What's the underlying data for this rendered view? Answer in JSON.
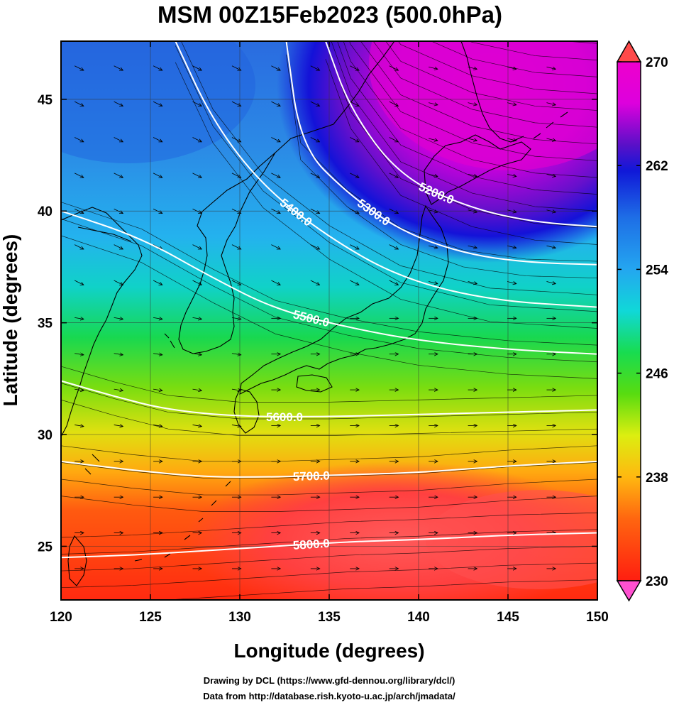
{
  "title": "MSM 00Z15Feb2023 (500.0hPa)",
  "xlabel": "Longitude (degrees)",
  "ylabel": "Latitude  (degrees)",
  "credits": {
    "line1": "Drawing by DCL (https://www.gfd-dennou.org/library/dcl/)",
    "line2": "Data from http://database.rish.kyoto-u.ac.jp/arch/jmadata/"
  },
  "chart_data": {
    "type": "heatmap",
    "xlim": [
      120,
      150
    ],
    "ylim": [
      22.6,
      47.6
    ],
    "xticks": [
      "120",
      "125",
      "130",
      "135",
      "140",
      "145",
      "150"
    ],
    "yticks": [
      "25",
      "30",
      "35",
      "40",
      "45"
    ],
    "grid": true,
    "colorbar": {
      "min": 230,
      "max": 270,
      "ticks": [
        "230",
        "238",
        "246",
        "254",
        "262",
        "270"
      ],
      "placement": "right"
    },
    "contours": [
      {
        "label": "5200.0",
        "points": [
          [
            134.8,
            47.6
          ],
          [
            136.2,
            44.5
          ],
          [
            139,
            41.5
          ],
          [
            143,
            40.1
          ],
          [
            146.5,
            39.5
          ],
          [
            150,
            39.3
          ]
        ]
      },
      {
        "label": "5300.0",
        "points": [
          [
            132.6,
            47.6
          ],
          [
            133.4,
            42.9
          ],
          [
            136,
            40.8
          ],
          [
            139,
            39.1
          ],
          [
            142.5,
            38.1
          ],
          [
            146,
            37.7
          ],
          [
            150,
            37.6
          ]
        ]
      },
      {
        "label": "5400.0",
        "points": [
          [
            126.4,
            47.6
          ],
          [
            128.5,
            44
          ],
          [
            131.3,
            41.1
          ],
          [
            135,
            38.8
          ],
          [
            139,
            37
          ],
          [
            144,
            36
          ],
          [
            150,
            35.7
          ]
        ]
      },
      {
        "label": "5500.0",
        "points": [
          [
            120,
            40
          ],
          [
            124.5,
            38.8
          ],
          [
            128.5,
            37
          ],
          [
            132,
            35.6
          ],
          [
            136,
            34.8
          ],
          [
            140,
            34.2
          ],
          [
            145,
            33.8
          ],
          [
            150,
            33.6
          ]
        ]
      },
      {
        "label": "5600.0",
        "points": [
          [
            120,
            32.4
          ],
          [
            123,
            31.7
          ],
          [
            126,
            31.1
          ],
          [
            130,
            30.8
          ],
          [
            135,
            30.8
          ],
          [
            140,
            30.9
          ],
          [
            145,
            31
          ],
          [
            150,
            31.1
          ]
        ]
      },
      {
        "label": "5700.0",
        "points": [
          [
            120,
            28.8
          ],
          [
            124,
            28.4
          ],
          [
            128,
            28.1
          ],
          [
            132,
            28.1
          ],
          [
            136,
            28.2
          ],
          [
            140,
            28.3
          ],
          [
            145,
            28.6
          ],
          [
            150,
            28.8
          ]
        ]
      },
      {
        "label": "5800.0",
        "points": [
          [
            120,
            24.5
          ],
          [
            124,
            24.6
          ],
          [
            128,
            24.8
          ],
          [
            132,
            25
          ],
          [
            136,
            25.2
          ],
          [
            140,
            25.3
          ],
          [
            145,
            25.5
          ],
          [
            150,
            25.6
          ]
        ]
      }
    ]
  }
}
